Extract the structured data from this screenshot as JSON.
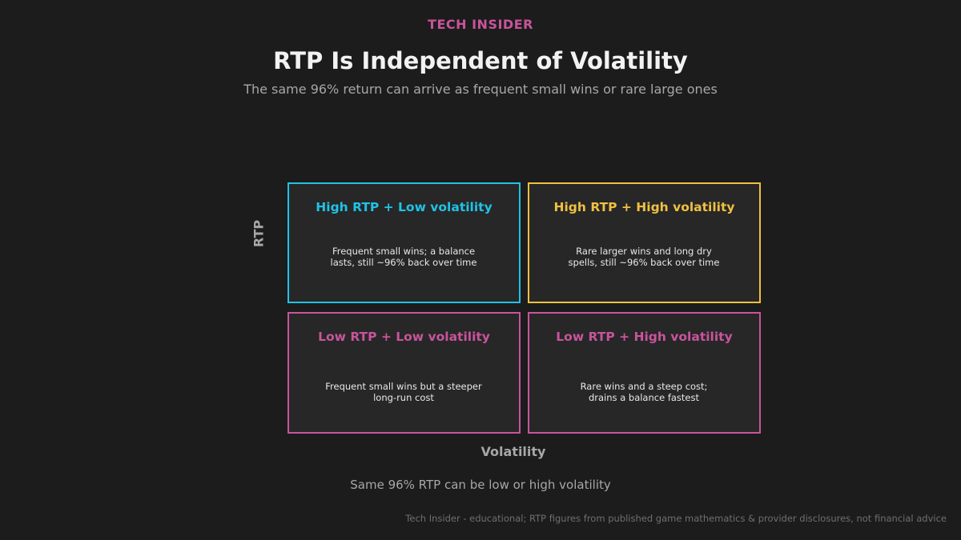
{
  "header": {
    "brand": "TECH INSIDER",
    "title": "RTP Is Independent of Volatility",
    "subtitle": "The same 96% return can arrive as frequent small wins or rare large ones"
  },
  "axes": {
    "y_label": "RTP",
    "x_label": "Volatility"
  },
  "quadrants": [
    {
      "title": "High RTP + Low volatility",
      "description": "Frequent small wins; a balance lasts, still ~96% back over time",
      "accent_color": "#1fc3e6"
    },
    {
      "title": "High RTP + High volatility",
      "description": "Rare larger wins and long dry spells, still ~96% back over time",
      "accent_color": "#f0c040"
    },
    {
      "title": "Low RTP + Low volatility",
      "description": "Frequent small wins but a steeper long-run cost",
      "accent_color": "#c9549b"
    },
    {
      "title": "Low RTP + High volatility",
      "description": "Rare wins and a steep cost; drains a balance fastest",
      "accent_color": "#c9549b"
    }
  ],
  "footer": {
    "note": "Same 96% RTP can be low or high volatility",
    "source": "Tech Insider - educational; RTP figures from published game mathematics & provider disclosures, not financial advice"
  },
  "colors": {
    "background": "#1c1c1d",
    "panel": "#272728",
    "brand": "#c9549b",
    "cyan": "#1fc3e6",
    "yellow": "#f0c040",
    "magenta": "#c9549b"
  }
}
